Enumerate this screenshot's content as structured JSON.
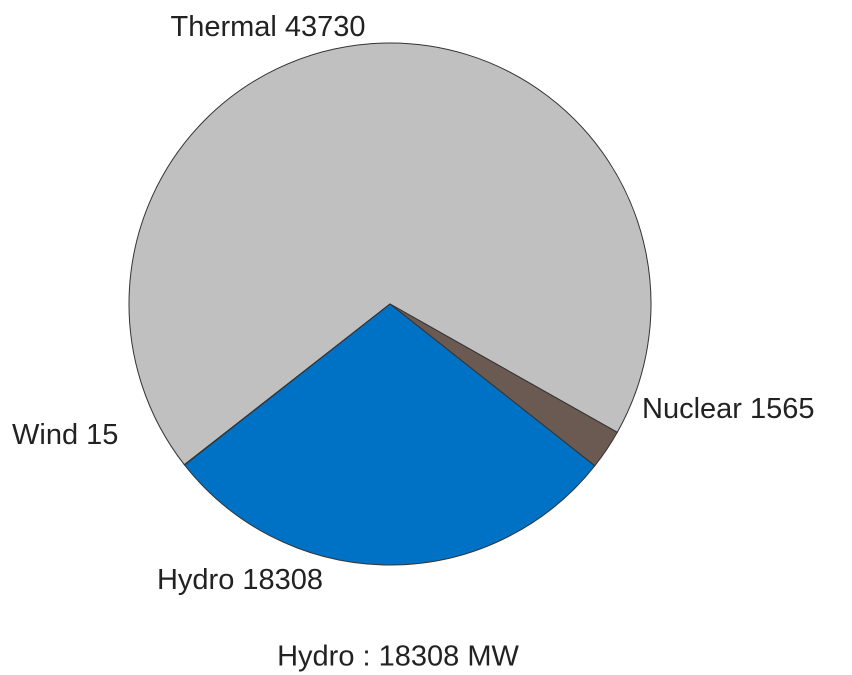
{
  "chart_data": {
    "type": "pie",
    "categories": [
      "Thermal",
      "Nuclear",
      "Hydro",
      "Wind"
    ],
    "values": [
      43730,
      1565,
      18308,
      15
    ],
    "colors": [
      "#c0c0c0",
      "#6b5a52",
      "#0072c6",
      "#8a7fc4"
    ],
    "caption": "Hydro : 18308 MW"
  }
}
